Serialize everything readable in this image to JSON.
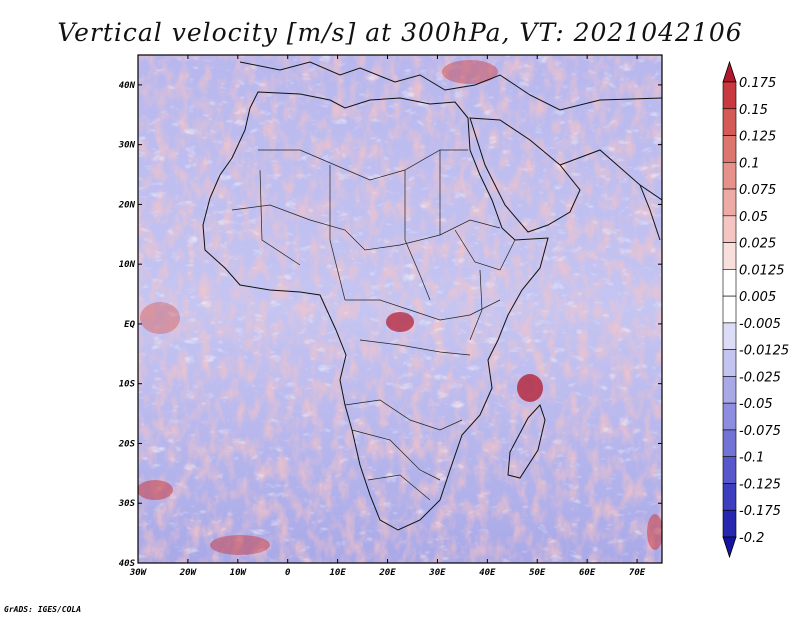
{
  "title": "Vertical velocity [m/s] at 300hPa, VT: 2021042106",
  "credit": "GrADS: IGES/COLA",
  "map": {
    "lon_range": [
      -30,
      75
    ],
    "lat_range": [
      -40,
      45
    ],
    "lon_ticks": [
      "30W",
      "20W",
      "10W",
      "0",
      "10E",
      "20E",
      "30E",
      "40E",
      "50E",
      "60E",
      "70E"
    ],
    "lat_ticks": [
      "40N",
      "30N",
      "20N",
      "10N",
      "EQ",
      "10S",
      "20S",
      "30S",
      "40S"
    ],
    "field": "vertical velocity",
    "level": "300hPa",
    "valid_time": "2021042106"
  },
  "colorbar": {
    "labels": [
      "0.175",
      "0.15",
      "0.125",
      "0.1",
      "0.075",
      "0.05",
      "0.025",
      "0.0125",
      "0.005",
      "-0.005",
      "-0.0125",
      "-0.025",
      "-0.05",
      "-0.075",
      "-0.1",
      "-0.125",
      "-0.175",
      "-0.2"
    ],
    "colors": [
      "#b2182b",
      "#c83a3f",
      "#d45a57",
      "#de7670",
      "#e6918a",
      "#eeaba5",
      "#f4c5c1",
      "#f9dfdc",
      "#ffffff",
      "#ffffff",
      "#dcdcf6",
      "#c4c4f0",
      "#a9a9e8",
      "#8e8ee0",
      "#7373d6",
      "#5858cc",
      "#3d3dbf",
      "#2727b0",
      "#1414a0"
    ]
  }
}
